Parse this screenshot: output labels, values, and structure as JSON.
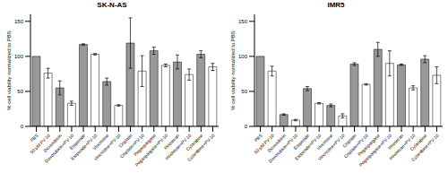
{
  "chart_data": [
    {
      "type": "bar",
      "title": "SK-N-AS",
      "y_label": "% cell viability normalized to PBS",
      "categories": [
        "PBS",
        "50 µM PV-10",
        "Doxorubicin",
        "Doxorubicin+PV-10",
        "Etoposide",
        "Etoposide+PV-10",
        "Vincristine",
        "Vincristine+PV-10",
        "Cisplatin",
        "Cisplatin+PV-10",
        "Pegaspargase",
        "Pegaspargase+PV-10",
        "Irinotecan",
        "Irinotecan+PV-10",
        "Cytarabine",
        "Cytarabine+PV-10"
      ],
      "values": [
        100,
        76,
        55,
        33,
        117,
        103,
        64,
        30,
        119,
        79,
        108,
        87,
        92,
        74,
        103,
        85
      ],
      "errors": [
        0,
        7,
        10,
        3,
        1,
        1,
        5,
        1,
        36,
        22,
        5,
        2,
        10,
        8,
        5,
        5
      ],
      "colors": [
        "#999999",
        "#ffffff",
        "#999999",
        "#ffffff",
        "#999999",
        "#ffffff",
        "#999999",
        "#ffffff",
        "#999999",
        "#ffffff",
        "#999999",
        "#ffffff",
        "#999999",
        "#ffffff",
        "#999999",
        "#ffffff"
      ],
      "ylim": [
        0,
        160
      ],
      "yticks": [
        0,
        50,
        100,
        150
      ],
      "grid": false
    },
    {
      "type": "bar",
      "title": "IMR5",
      "y_label": "% cell viability normalized to PBS",
      "categories": [
        "PBS",
        "50 µM PV-10",
        "Doxorubicin",
        "Doxorubicin+PV-10",
        "Etoposide",
        "Etoposide+PV-10",
        "Vincristine",
        "Vincristine+PV-10",
        "Cisplatin",
        "Cisplatin+PV-10",
        "Pegaspargase",
        "Pegaspargase+PV-10",
        "Irinotecan",
        "Irinotecan+PV-10",
        "Cytarabine",
        "Cytarabine+PV-10"
      ],
      "values": [
        100,
        79,
        17,
        9,
        54,
        33,
        30,
        15,
        89,
        60,
        110,
        90,
        88,
        55,
        96,
        73
      ],
      "errors": [
        0,
        7,
        1,
        1,
        3,
        1,
        2,
        3,
        2,
        1,
        10,
        18,
        1,
        3,
        5,
        12
      ],
      "colors": [
        "#999999",
        "#ffffff",
        "#999999",
        "#ffffff",
        "#999999",
        "#ffffff",
        "#999999",
        "#ffffff",
        "#999999",
        "#ffffff",
        "#999999",
        "#ffffff",
        "#999999",
        "#ffffff",
        "#999999",
        "#ffffff"
      ],
      "ylim": [
        0,
        160
      ],
      "yticks": [
        0,
        50,
        100,
        150
      ],
      "grid": false
    }
  ]
}
